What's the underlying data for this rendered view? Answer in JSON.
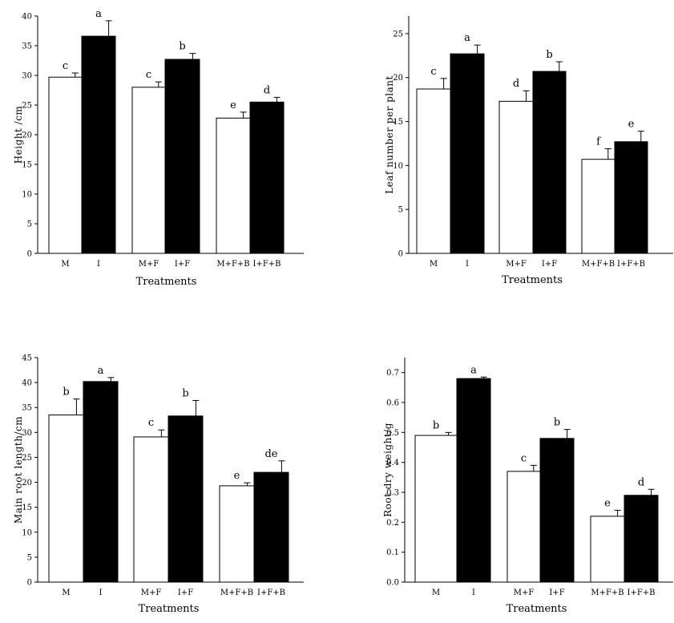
{
  "chart_data": [
    {
      "type": "bar",
      "xlabel": "Treatments",
      "ylabel": "Height /cm",
      "ylim": [
        0,
        40
      ],
      "yticks": [
        "0",
        "5",
        "10",
        "15",
        "20",
        "25",
        "30",
        "35",
        "40"
      ],
      "categories": [
        "M",
        "I",
        "M+F",
        "I+F",
        "M+F+B",
        "I+F+B"
      ],
      "values": [
        29.7,
        36.6,
        28.0,
        32.7,
        22.8,
        25.5
      ],
      "errors": [
        0.7,
        2.6,
        0.9,
        1.0,
        1.0,
        0.8
      ],
      "fills": [
        "#ffffff",
        "#000000",
        "#ffffff",
        "#000000",
        "#ffffff",
        "#000000"
      ],
      "labels": [
        "c",
        "a",
        "c",
        "b",
        "e",
        "d"
      ],
      "grid": false
    },
    {
      "type": "bar",
      "xlabel": "Treatments",
      "ylabel": "Leaf number per plant",
      "ylim": [
        0,
        27
      ],
      "yticks": [
        "0",
        "5",
        "10",
        "15",
        "20",
        "25"
      ],
      "categories": [
        "M",
        "I",
        "M+F",
        "I+F",
        "M+F+B",
        "I+F+B"
      ],
      "values": [
        18.7,
        22.7,
        17.3,
        20.7,
        10.7,
        12.7
      ],
      "errors": [
        1.2,
        1.0,
        1.2,
        1.1,
        1.2,
        1.2
      ],
      "fills": [
        "#ffffff",
        "#000000",
        "#ffffff",
        "#000000",
        "#ffffff",
        "#000000"
      ],
      "labels": [
        "c",
        "a",
        "d",
        "b",
        "f",
        "e"
      ],
      "grid": false
    },
    {
      "type": "bar",
      "xlabel": "Treatments",
      "ylabel": "Main root length/cm",
      "ylim": [
        0,
        45
      ],
      "yticks": [
        "0",
        "5",
        "10",
        "15",
        "20",
        "25",
        "30",
        "35",
        "40",
        "45"
      ],
      "categories": [
        "M",
        "I",
        "M+F",
        "I+F",
        "M+F+B",
        "I+F+B"
      ],
      "values": [
        33.5,
        40.2,
        29.1,
        33.3,
        19.3,
        22.0
      ],
      "errors": [
        3.2,
        0.8,
        1.4,
        3.1,
        0.6,
        2.3
      ],
      "fills": [
        "#ffffff",
        "#000000",
        "#ffffff",
        "#000000",
        "#ffffff",
        "#000000"
      ],
      "labels": [
        "b",
        "a",
        "c",
        "b",
        "e",
        "de"
      ],
      "grid": false
    },
    {
      "type": "bar",
      "xlabel": "Treatments",
      "ylabel": "Root dry weight/g",
      "ylim": [
        0,
        0.75
      ],
      "yticks": [
        "0.0",
        "0.1",
        "0.2",
        "0.3",
        "0.4",
        "0.5",
        "0.6",
        "0.7"
      ],
      "categories": [
        "M",
        "I",
        "M+F",
        "I+F",
        "M+F+B",
        "I+F+B"
      ],
      "values": [
        0.49,
        0.68,
        0.37,
        0.48,
        0.22,
        0.29
      ],
      "errors": [
        0.01,
        0.005,
        0.02,
        0.03,
        0.02,
        0.02
      ],
      "fills": [
        "#ffffff",
        "#000000",
        "#ffffff",
        "#000000",
        "#ffffff",
        "#000000"
      ],
      "labels": [
        "b",
        "a",
        "c",
        "b",
        "e",
        "d"
      ],
      "grid": false
    }
  ]
}
